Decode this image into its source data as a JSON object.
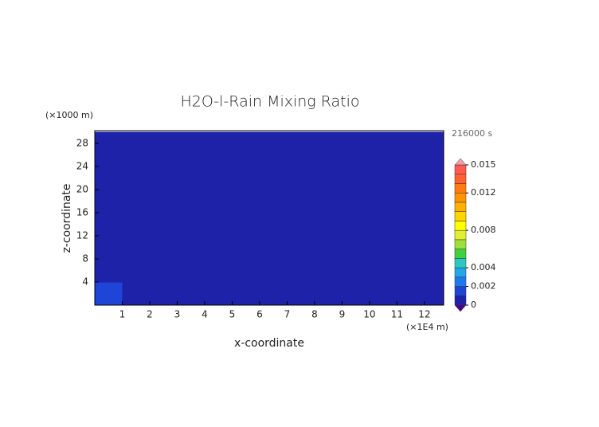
{
  "chart_data": {
    "type": "heatmap",
    "title": "H2O-l-Rain Mixing Ratio",
    "x_label": "x-coordinate",
    "y_label": "z-coordinate",
    "x_unit": "(×1E4 m)",
    "y_unit": "(×1000 m)",
    "time_label": "216000 s",
    "x": [
      0.5,
      1.5,
      2.5,
      3.5,
      4.5,
      5.5,
      6.5,
      7.5,
      8.5,
      9.5,
      10.5,
      11.5,
      12.5
    ],
    "z": [
      1,
      3,
      5,
      7,
      9,
      11,
      13,
      15,
      17,
      19,
      21,
      23,
      25,
      27,
      29
    ],
    "values": [
      [
        0.001,
        0,
        0,
        0,
        0,
        0,
        0,
        0,
        0,
        0,
        0,
        0,
        0
      ],
      [
        0.001,
        0,
        0,
        0,
        0,
        0,
        0,
        0,
        0,
        0,
        0,
        0,
        0
      ],
      [
        0,
        0,
        0,
        0,
        0,
        0,
        0,
        0,
        0,
        0,
        0,
        0,
        0
      ],
      [
        0,
        0,
        0,
        0,
        0,
        0,
        0,
        0,
        0,
        0,
        0,
        0,
        0
      ],
      [
        0,
        0,
        0,
        0,
        0,
        0,
        0,
        0,
        0,
        0,
        0,
        0,
        0
      ],
      [
        0,
        0,
        0,
        0,
        0,
        0,
        0,
        0,
        0,
        0,
        0,
        0,
        0
      ],
      [
        0,
        0,
        0,
        0,
        0,
        0,
        0,
        0,
        0,
        0,
        0,
        0,
        0
      ],
      [
        0,
        0,
        0,
        0,
        0,
        0,
        0,
        0,
        0,
        0,
        0,
        0,
        0
      ],
      [
        0,
        0,
        0,
        0,
        0,
        0,
        0,
        0,
        0,
        0,
        0,
        0,
        0
      ],
      [
        0,
        0,
        0,
        0,
        0,
        0,
        0,
        0,
        0,
        0,
        0,
        0,
        0
      ],
      [
        0,
        0,
        0,
        0,
        0,
        0,
        0,
        0,
        0,
        0,
        0,
        0,
        0
      ],
      [
        0,
        0,
        0,
        0,
        0,
        0,
        0,
        0,
        0,
        0,
        0,
        0,
        0
      ],
      [
        0,
        0,
        0,
        0,
        0,
        0,
        0,
        0,
        0,
        0,
        0,
        0,
        0
      ],
      [
        0,
        0,
        0,
        0,
        0,
        0,
        0,
        0,
        0,
        0,
        0,
        0,
        0
      ],
      [
        0,
        0,
        0,
        0,
        0,
        0,
        0,
        0,
        0,
        0,
        0,
        0,
        0
      ]
    ],
    "xlim": [
      0,
      12.7
    ],
    "ylim": [
      0,
      30.2
    ],
    "xticks": [
      1,
      2,
      3,
      4,
      5,
      6,
      7,
      8,
      9,
      10,
      11,
      12
    ],
    "yticks": [
      4,
      8,
      12,
      16,
      20,
      24,
      28
    ],
    "levels": [
      0,
      0.001,
      0.002,
      0.003,
      0.004,
      0.005,
      0.006,
      0.007,
      0.008,
      0.009,
      0.01,
      0.011,
      0.012,
      0.013,
      0.014,
      0.015
    ],
    "level_colors": [
      "#1e22a8",
      "#1e44d8",
      "#1e78ee",
      "#22a6e8",
      "#2ac8c0",
      "#40d040",
      "#9ee03a",
      "#e0f030",
      "#ffff00",
      "#ffd400",
      "#ffb000",
      "#ff9400",
      "#ff7a10",
      "#ff6030",
      "#ff5a50"
    ],
    "under_color": "#500090",
    "over_color": "#f0a0a8",
    "cbar_ticks": [
      0,
      0.002,
      0.004,
      0.008,
      0.012,
      0.015
    ]
  }
}
